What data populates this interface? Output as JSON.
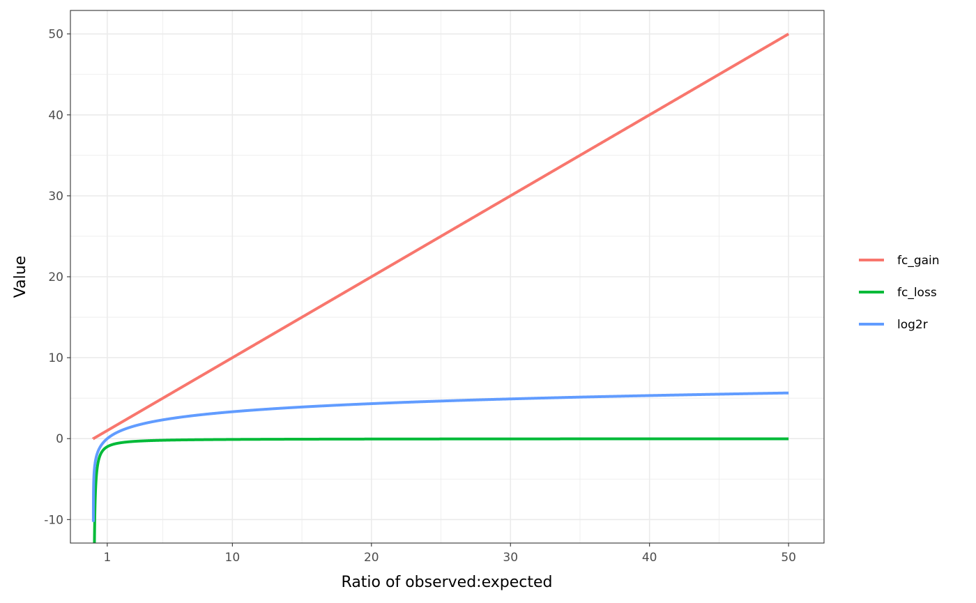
{
  "chart_data": {
    "type": "line",
    "title": "",
    "xlabel": "Ratio of observed:expected",
    "ylabel": "Value",
    "xlim": [
      -1.65,
      52.55
    ],
    "ylim": [
      -12.9,
      52.9
    ],
    "x_ticks": [
      1,
      10,
      20,
      30,
      40,
      50
    ],
    "x_tick_labels": [
      "1",
      "10",
      "20",
      "30",
      "40",
      "50"
    ],
    "x_minor_ticks": [
      5,
      15,
      25,
      35,
      45
    ],
    "y_ticks": [
      -10,
      0,
      10,
      20,
      30,
      40,
      50
    ],
    "y_tick_labels": [
      "-10",
      "0",
      "10",
      "20",
      "30",
      "40",
      "50"
    ],
    "y_minor_ticks": [
      -5,
      5,
      15,
      25,
      35,
      45
    ],
    "grid": true,
    "legend_position": "right",
    "x_domain": [
      0,
      50
    ],
    "series": [
      {
        "name": "fc_gain",
        "color": "#F8766D",
        "formula": "x",
        "values_at": {
          "0": 0,
          "10": 10,
          "20": 20,
          "30": 30,
          "40": 40,
          "50": 50
        }
      },
      {
        "name": "fc_loss",
        "color": "#00BA38",
        "formula": "-1/x",
        "values_at": {
          "1": -1,
          "10": -0.1,
          "20": -0.05,
          "50": -0.02
        }
      },
      {
        "name": "log2r",
        "color": "#619CFF",
        "formula": "log2(x)",
        "values_at": {
          "1": 0,
          "10": 3.32,
          "20": 4.32,
          "30": 4.91,
          "40": 5.32,
          "50": 5.64
        }
      }
    ]
  }
}
